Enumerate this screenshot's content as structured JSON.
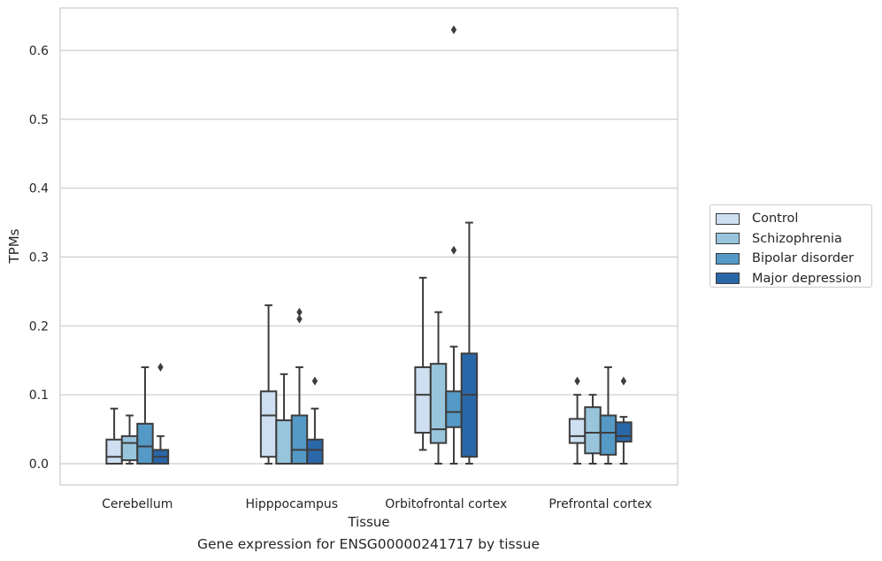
{
  "chart_data": {
    "type": "box",
    "title": "",
    "caption": "Gene expression for ENSG00000241717 by tissue",
    "xlabel": "Tissue",
    "ylabel": "TPMs",
    "ylim": [
      -0.03,
      0.66
    ],
    "yticks": [
      0.0,
      0.1,
      0.2,
      0.3,
      0.4,
      0.5,
      0.6
    ],
    "ytick_labels": [
      "0.0",
      "0.1",
      "0.2",
      "0.3",
      "0.4",
      "0.5",
      "0.6"
    ],
    "grid": "horizontal",
    "legend_position": "right",
    "categories": [
      "Cerebellum",
      "Hipppocampus",
      "Orbitofrontal cortex",
      "Prefrontal cortex"
    ],
    "series": [
      {
        "name": "Control",
        "color": "#cddff0",
        "boxes": [
          {
            "whisker_low": 0.0,
            "q1": 0.0,
            "median": 0.01,
            "q3": 0.035,
            "whisker_high": 0.08,
            "outliers": []
          },
          {
            "whisker_low": 0.0,
            "q1": 0.01,
            "median": 0.07,
            "q3": 0.105,
            "whisker_high": 0.23,
            "outliers": []
          },
          {
            "whisker_low": 0.02,
            "q1": 0.045,
            "median": 0.1,
            "q3": 0.14,
            "whisker_high": 0.27,
            "outliers": []
          },
          {
            "whisker_low": 0.0,
            "q1": 0.03,
            "median": 0.04,
            "q3": 0.065,
            "whisker_high": 0.1,
            "outliers": [
              0.12
            ]
          }
        ]
      },
      {
        "name": "Schizophrenia",
        "color": "#98c4dc",
        "boxes": [
          {
            "whisker_low": 0.0,
            "q1": 0.005,
            "median": 0.03,
            "q3": 0.04,
            "whisker_high": 0.07,
            "outliers": []
          },
          {
            "whisker_low": 0.0,
            "q1": 0.0,
            "median": 0.0,
            "q3": 0.063,
            "whisker_high": 0.13,
            "outliers": []
          },
          {
            "whisker_low": 0.0,
            "q1": 0.03,
            "median": 0.05,
            "q3": 0.145,
            "whisker_high": 0.22,
            "outliers": []
          },
          {
            "whisker_low": 0.0,
            "q1": 0.015,
            "median": 0.045,
            "q3": 0.082,
            "whisker_high": 0.1,
            "outliers": []
          }
        ]
      },
      {
        "name": "Bipolar disorder",
        "color": "#5599c6",
        "boxes": [
          {
            "whisker_low": 0.0,
            "q1": 0.0,
            "median": 0.025,
            "q3": 0.058,
            "whisker_high": 0.14,
            "outliers": []
          },
          {
            "whisker_low": 0.0,
            "q1": 0.0,
            "median": 0.02,
            "q3": 0.07,
            "whisker_high": 0.14,
            "outliers": [
              0.21,
              0.22
            ]
          },
          {
            "whisker_low": 0.0,
            "q1": 0.053,
            "median": 0.075,
            "q3": 0.105,
            "whisker_high": 0.17,
            "outliers": [
              0.31,
              0.63
            ]
          },
          {
            "whisker_low": 0.0,
            "q1": 0.013,
            "median": 0.045,
            "q3": 0.07,
            "whisker_high": 0.14,
            "outliers": []
          }
        ]
      },
      {
        "name": "Major depression",
        "color": "#2a67a8",
        "boxes": [
          {
            "whisker_low": 0.0,
            "q1": 0.0,
            "median": 0.01,
            "q3": 0.02,
            "whisker_high": 0.04,
            "outliers": [
              0.14
            ]
          },
          {
            "whisker_low": 0.0,
            "q1": 0.0,
            "median": 0.02,
            "q3": 0.035,
            "whisker_high": 0.08,
            "outliers": [
              0.12
            ]
          },
          {
            "whisker_low": 0.0,
            "q1": 0.01,
            "median": 0.1,
            "q3": 0.16,
            "whisker_high": 0.35,
            "outliers": []
          },
          {
            "whisker_low": 0.0,
            "q1": 0.032,
            "median": 0.04,
            "q3": 0.06,
            "whisker_high": 0.068,
            "outliers": [
              0.12
            ]
          }
        ]
      }
    ]
  }
}
